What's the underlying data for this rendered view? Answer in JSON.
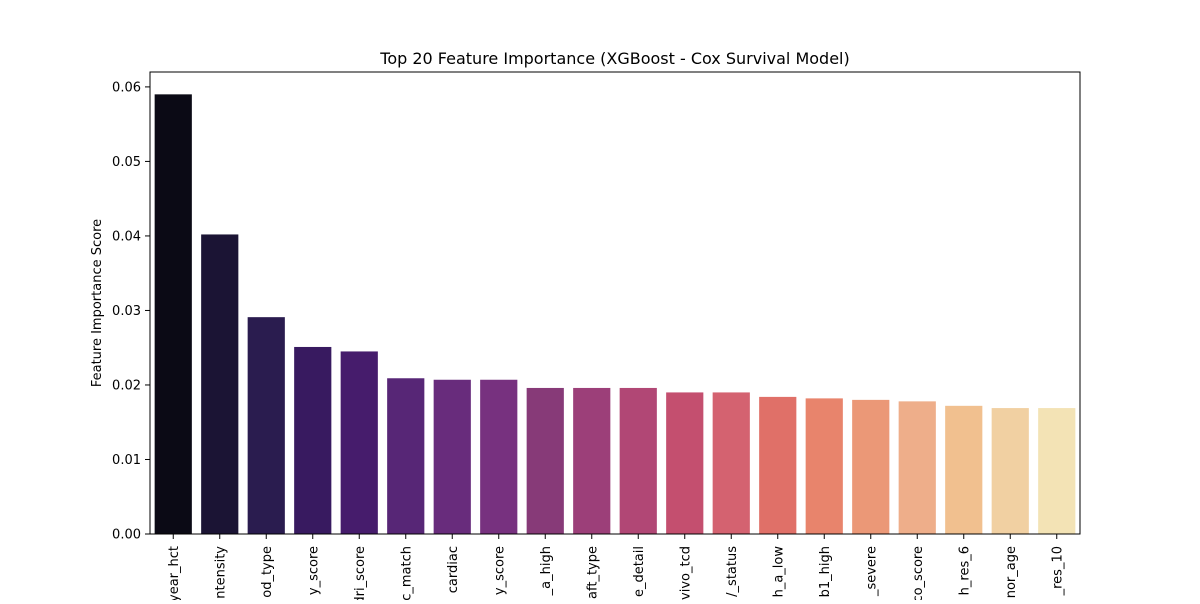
{
  "chart_data": {
    "type": "bar",
    "title": "Top 20 Feature Importance (XGBoost - Cox Survival Model)",
    "xlabel": "",
    "ylabel": "Feature Importance Score",
    "ylim": [
      0,
      0.062
    ],
    "yticks": [
      "0.00",
      "0.01",
      "0.02",
      "0.03",
      "0.04",
      "0.05",
      "0.06"
    ],
    "ytick_values": [
      0,
      0.01,
      0.02,
      0.03,
      0.04,
      0.05,
      0.06
    ],
    "grid": false,
    "categories": [
      "year_hct",
      "ntensity",
      "od_type",
      "y_score",
      "dri_score",
      "c_match",
      "cardiac",
      "y_score",
      "_a_high",
      "aft_type",
      "e_detail",
      "vivo_tcd",
      "/_status",
      "h_a_low",
      "b1_high",
      "_severe",
      "co_score",
      "h_res_6",
      "nor_age",
      "_res_10"
    ],
    "values": [
      0.059,
      0.0402,
      0.0291,
      0.0251,
      0.0245,
      0.0209,
      0.0207,
      0.0207,
      0.0196,
      0.0196,
      0.0196,
      0.019,
      0.019,
      0.0184,
      0.0182,
      0.018,
      0.0178,
      0.0172,
      0.0169,
      0.0169
    ],
    "colors": [
      "#0b0a15",
      "#1b1434",
      "#2a1c4f",
      "#381a60",
      "#461c6c",
      "#572676",
      "#682c7c",
      "#77317f",
      "#873a78",
      "#9c3f79",
      "#b14775",
      "#c44f6f",
      "#d46270",
      "#e07068",
      "#e8846c",
      "#eb9877",
      "#eeae8a",
      "#f1c08f",
      "#f1d0a2",
      "#f3e3b5"
    ]
  }
}
